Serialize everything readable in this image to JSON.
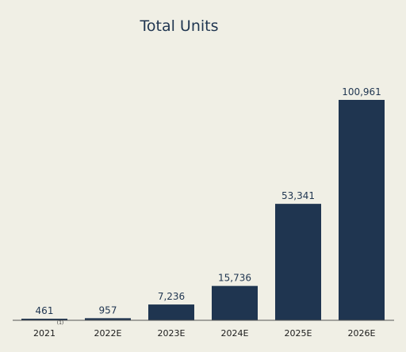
{
  "chart_data": {
    "type": "bar",
    "title": "Total Units",
    "categories": [
      "2021",
      "2022E",
      "2023E",
      "2024E",
      "2025E",
      "2026E"
    ],
    "values": [
      461,
      957,
      7236,
      15736,
      53341,
      100961
    ],
    "value_labels": [
      "461",
      "957",
      "7,236",
      "15,736",
      "53,341",
      "100,961"
    ],
    "footnote": "(1)",
    "footnote_category_index": 0,
    "xlabel": "",
    "ylabel": "",
    "ylim": [
      0,
      100961
    ],
    "grid": false,
    "bar_color": "#1f3550",
    "background_color": "#f0efe5"
  }
}
